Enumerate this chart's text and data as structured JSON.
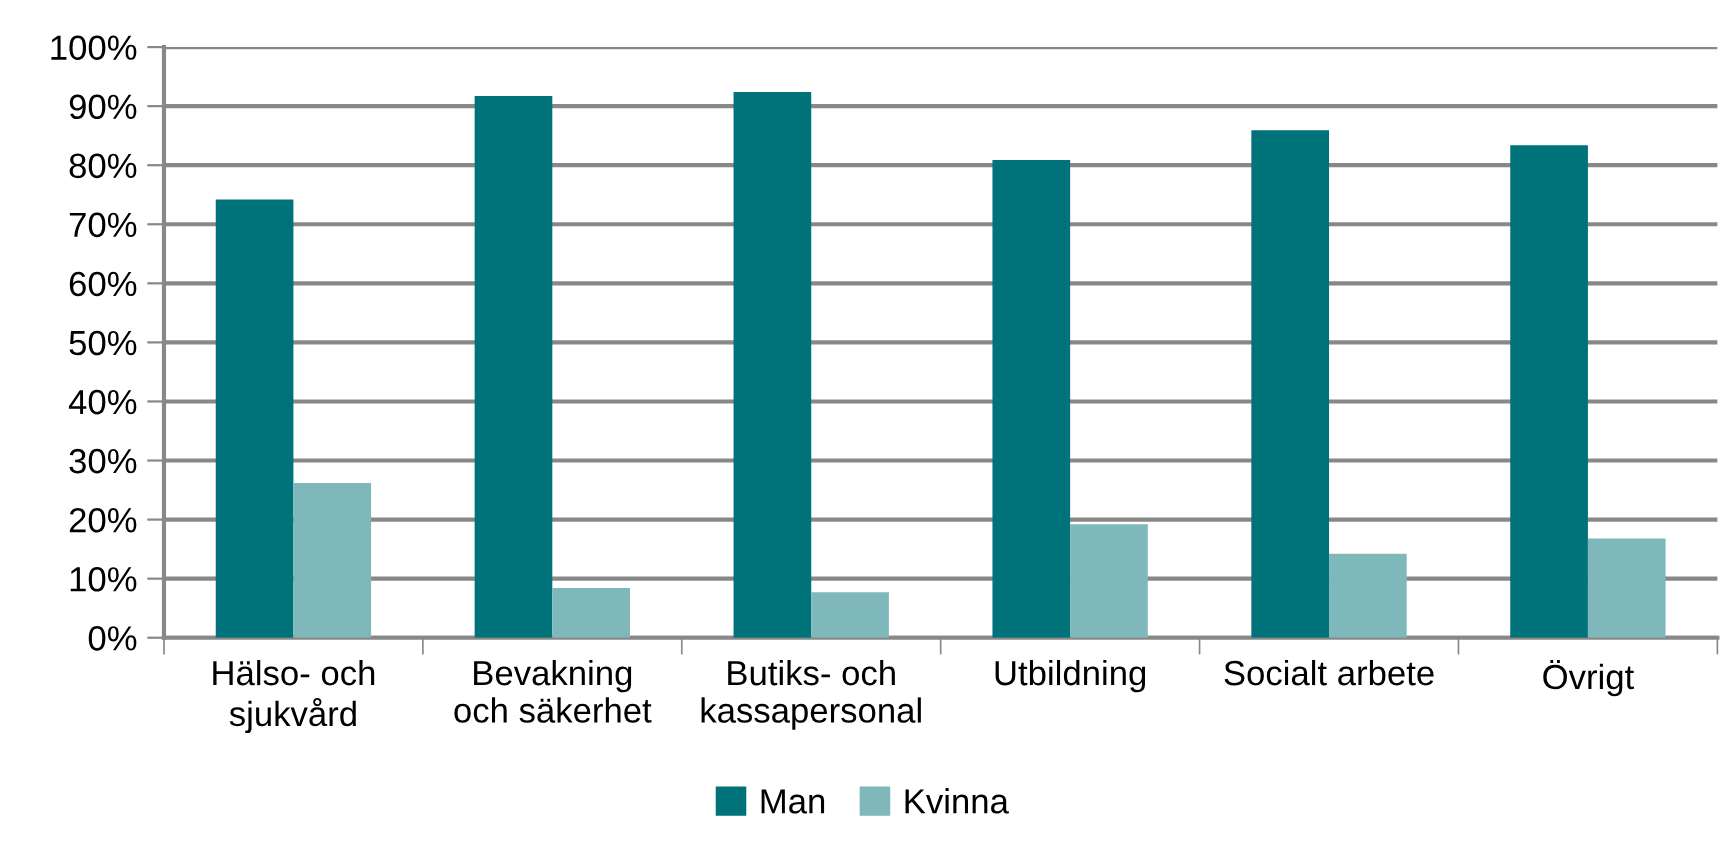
{
  "chart_data": {
    "type": "bar",
    "categories": [
      "Hälso- och\nsjukvård",
      "Bevakning\noch säkerhet",
      "Butiks- och\nkassapersonal",
      "Utbildning",
      "Socialt arbete",
      "Övrigt"
    ],
    "series": [
      {
        "name": "Man",
        "color": "#00727a",
        "values": [
          74.2,
          91.7,
          92.4,
          80.9,
          85.9,
          83.4
        ]
      },
      {
        "name": "Kvinna",
        "color": "#7fb8bb",
        "values": [
          26.2,
          8.4,
          7.7,
          19.2,
          14.2,
          16.8
        ]
      }
    ],
    "ylim": [
      0,
      100
    ],
    "yticks": [
      {
        "value": 0,
        "label": "0%"
      },
      {
        "value": 10,
        "label": "10%"
      },
      {
        "value": 20,
        "label": "20%"
      },
      {
        "value": 30,
        "label": "30%"
      },
      {
        "value": 40,
        "label": "40%"
      },
      {
        "value": 50,
        "label": "50%"
      },
      {
        "value": 60,
        "label": "60%"
      },
      {
        "value": 70,
        "label": "70%"
      },
      {
        "value": 80,
        "label": "80%"
      },
      {
        "value": 90,
        "label": "90%"
      },
      {
        "value": 100,
        "label": "100%"
      }
    ],
    "grid": "y",
    "legend": "bottom"
  }
}
